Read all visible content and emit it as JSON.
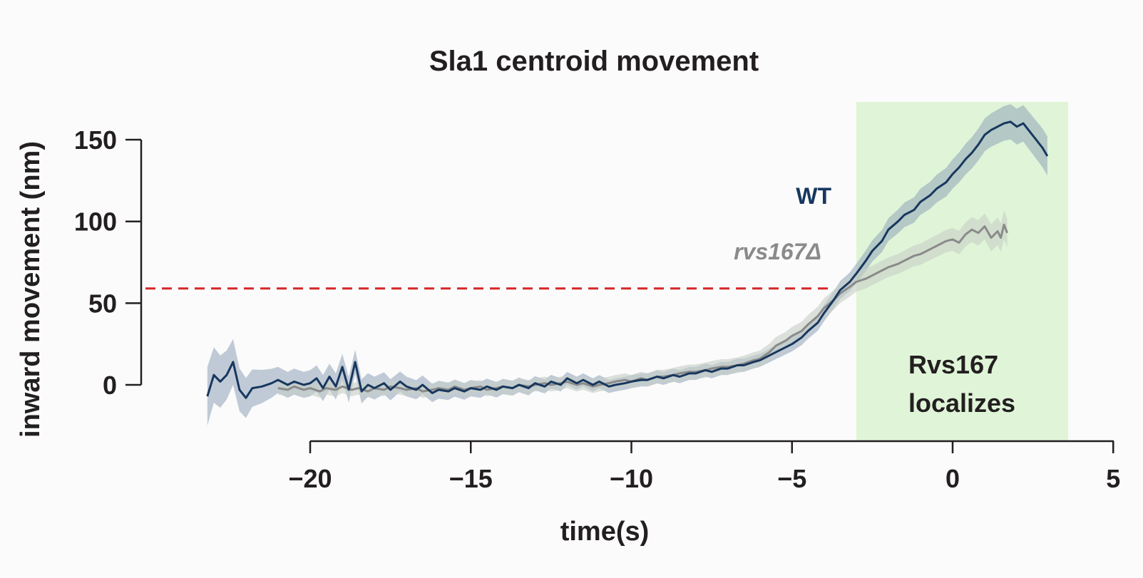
{
  "chart_data": {
    "type": "line",
    "title": "Sla1 centroid movement",
    "xlabel": "time(s)",
    "ylabel": "inward movement (nm)",
    "xlim": [
      -23.5,
      5
    ],
    "ylim": [
      -20,
      172
    ],
    "xticks": [
      -20,
      -15,
      -10,
      -5,
      0,
      5
    ],
    "xtick_labels": [
      "−20",
      "−15",
      "−10",
      "−5",
      "0",
      "5"
    ],
    "yticks": [
      0,
      50,
      100,
      150
    ],
    "ytick_labels": [
      "0",
      "50",
      "100",
      "150"
    ],
    "threshold": {
      "y": 59,
      "x_end": -3.8,
      "color": "#d7262b",
      "style": "dashed"
    },
    "shaded_region": {
      "x_start": -3,
      "x_end": 3.6,
      "label_lines": [
        "Rvs167",
        "localizes"
      ],
      "color": "#e0f5d8"
    },
    "series": [
      {
        "name": "WT",
        "color": "#17375e",
        "band_color": "#8fa3b8",
        "points": [
          [
            -23.2,
            -7
          ],
          [
            -23.0,
            6
          ],
          [
            -22.8,
            2
          ],
          [
            -22.6,
            6
          ],
          [
            -22.4,
            14
          ],
          [
            -22.2,
            -3
          ],
          [
            -22.0,
            -8
          ],
          [
            -21.8,
            -2
          ],
          [
            -21.5,
            -1
          ],
          [
            -21.2,
            1
          ],
          [
            -21.0,
            3
          ],
          [
            -20.7,
            0
          ],
          [
            -20.5,
            2
          ],
          [
            -20.2,
            0
          ],
          [
            -20.0,
            1
          ],
          [
            -19.8,
            4
          ],
          [
            -19.6,
            -2
          ],
          [
            -19.4,
            5
          ],
          [
            -19.2,
            -1
          ],
          [
            -19.0,
            11
          ],
          [
            -18.8,
            -3
          ],
          [
            -18.6,
            14
          ],
          [
            -18.4,
            -4
          ],
          [
            -18.2,
            0
          ],
          [
            -18.0,
            -2
          ],
          [
            -17.7,
            1
          ],
          [
            -17.5,
            -3
          ],
          [
            -17.2,
            2
          ],
          [
            -17.0,
            -1
          ],
          [
            -16.7,
            -3
          ],
          [
            -16.5,
            0
          ],
          [
            -16.2,
            -5
          ],
          [
            -16.0,
            -3
          ],
          [
            -15.7,
            -4
          ],
          [
            -15.5,
            -2
          ],
          [
            -15.2,
            -4
          ],
          [
            -15.0,
            -2
          ],
          [
            -14.7,
            -3
          ],
          [
            -14.5,
            -1
          ],
          [
            -14.2,
            -3
          ],
          [
            -14.0,
            -1
          ],
          [
            -13.7,
            -2
          ],
          [
            -13.5,
            0
          ],
          [
            -13.2,
            -2
          ],
          [
            -13.0,
            1
          ],
          [
            -12.7,
            -1
          ],
          [
            -12.5,
            2
          ],
          [
            -12.2,
            0
          ],
          [
            -12.0,
            4
          ],
          [
            -11.7,
            1
          ],
          [
            -11.5,
            3
          ],
          [
            -11.2,
            0
          ],
          [
            -11.0,
            2
          ],
          [
            -10.7,
            -1
          ],
          [
            -10.5,
            0
          ],
          [
            -10.2,
            1
          ],
          [
            -10.0,
            2
          ],
          [
            -9.7,
            3
          ],
          [
            -9.5,
            3
          ],
          [
            -9.2,
            5
          ],
          [
            -9.0,
            4
          ],
          [
            -8.7,
            6
          ],
          [
            -8.5,
            5
          ],
          [
            -8.2,
            7
          ],
          [
            -8.0,
            7
          ],
          [
            -7.7,
            9
          ],
          [
            -7.5,
            8
          ],
          [
            -7.2,
            10
          ],
          [
            -7.0,
            10
          ],
          [
            -6.7,
            12
          ],
          [
            -6.5,
            12
          ],
          [
            -6.2,
            14
          ],
          [
            -6.0,
            15
          ],
          [
            -5.7,
            18
          ],
          [
            -5.5,
            20
          ],
          [
            -5.2,
            23
          ],
          [
            -5.0,
            25
          ],
          [
            -4.7,
            29
          ],
          [
            -4.5,
            33
          ],
          [
            -4.2,
            38
          ],
          [
            -4.0,
            44
          ],
          [
            -3.7,
            52
          ],
          [
            -3.5,
            58
          ],
          [
            -3.2,
            63
          ],
          [
            -3.0,
            68
          ],
          [
            -2.7,
            76
          ],
          [
            -2.5,
            82
          ],
          [
            -2.2,
            88
          ],
          [
            -2.0,
            95
          ],
          [
            -1.7,
            100
          ],
          [
            -1.5,
            104
          ],
          [
            -1.2,
            107
          ],
          [
            -1.0,
            112
          ],
          [
            -0.7,
            116
          ],
          [
            -0.5,
            120
          ],
          [
            -0.2,
            124
          ],
          [
            0.0,
            129
          ],
          [
            0.2,
            133
          ],
          [
            0.4,
            138
          ],
          [
            0.6,
            142
          ],
          [
            0.8,
            147
          ],
          [
            1.0,
            153
          ],
          [
            1.2,
            156
          ],
          [
            1.4,
            158
          ],
          [
            1.6,
            160
          ],
          [
            1.8,
            161
          ],
          [
            2.0,
            158
          ],
          [
            2.2,
            160
          ],
          [
            2.4,
            155
          ],
          [
            2.6,
            150
          ],
          [
            2.8,
            145
          ],
          [
            2.95,
            140
          ]
        ],
        "band_halfwidth": [
          [
            -23.2,
            18
          ],
          [
            -22.4,
            14
          ],
          [
            -21.0,
            8
          ],
          [
            -19.0,
            8
          ],
          [
            -17.0,
            6
          ],
          [
            -15.0,
            5
          ],
          [
            -12.0,
            4
          ],
          [
            -9.0,
            4
          ],
          [
            -6.0,
            4
          ],
          [
            -4.0,
            5
          ],
          [
            -2.0,
            7
          ],
          [
            0.0,
            9
          ],
          [
            2.0,
            11
          ],
          [
            2.95,
            12
          ]
        ]
      },
      {
        "name": "rvs167Δ",
        "color": "#8a8a8a",
        "band_color": "#c7cfc7",
        "points": [
          [
            -21.0,
            -2
          ],
          [
            -20.7,
            -3
          ],
          [
            -20.5,
            -1
          ],
          [
            -20.2,
            -3
          ],
          [
            -20.0,
            -2
          ],
          [
            -19.7,
            -4
          ],
          [
            -19.5,
            -2
          ],
          [
            -19.2,
            -3
          ],
          [
            -19.0,
            -1
          ],
          [
            -18.7,
            -3
          ],
          [
            -18.5,
            -2
          ],
          [
            -18.2,
            -4
          ],
          [
            -18.0,
            -2
          ],
          [
            -17.7,
            -3
          ],
          [
            -17.5,
            -1
          ],
          [
            -17.2,
            -2
          ],
          [
            -17.0,
            -3
          ],
          [
            -16.7,
            -2
          ],
          [
            -16.5,
            -4
          ],
          [
            -16.2,
            -3
          ],
          [
            -16.0,
            -2
          ],
          [
            -15.7,
            -3
          ],
          [
            -15.5,
            -1
          ],
          [
            -15.2,
            -3
          ],
          [
            -15.0,
            -2
          ],
          [
            -14.7,
            -1
          ],
          [
            -14.5,
            -3
          ],
          [
            -14.2,
            -2
          ],
          [
            -14.0,
            -1
          ],
          [
            -13.7,
            -2
          ],
          [
            -13.5,
            0
          ],
          [
            -13.2,
            -1
          ],
          [
            -13.0,
            0
          ],
          [
            -12.7,
            1
          ],
          [
            -12.5,
            0
          ],
          [
            -12.2,
            1
          ],
          [
            -12.0,
            2
          ],
          [
            -11.7,
            0
          ],
          [
            -11.5,
            1
          ],
          [
            -11.2,
            -1
          ],
          [
            -11.0,
            0
          ],
          [
            -10.7,
            1
          ],
          [
            -10.5,
            2
          ],
          [
            -10.2,
            3
          ],
          [
            -10.0,
            2
          ],
          [
            -9.7,
            4
          ],
          [
            -9.5,
            3
          ],
          [
            -9.2,
            5
          ],
          [
            -9.0,
            5
          ],
          [
            -8.7,
            6
          ],
          [
            -8.5,
            7
          ],
          [
            -8.2,
            8
          ],
          [
            -8.0,
            8
          ],
          [
            -7.7,
            9
          ],
          [
            -7.5,
            10
          ],
          [
            -7.2,
            11
          ],
          [
            -7.0,
            11
          ],
          [
            -6.7,
            12
          ],
          [
            -6.5,
            13
          ],
          [
            -6.2,
            15
          ],
          [
            -6.0,
            16
          ],
          [
            -5.7,
            20
          ],
          [
            -5.5,
            24
          ],
          [
            -5.2,
            27
          ],
          [
            -5.0,
            30
          ],
          [
            -4.7,
            33
          ],
          [
            -4.5,
            37
          ],
          [
            -4.2,
            42
          ],
          [
            -4.0,
            47
          ],
          [
            -3.7,
            52
          ],
          [
            -3.5,
            56
          ],
          [
            -3.2,
            60
          ],
          [
            -3.0,
            63
          ],
          [
            -2.7,
            65
          ],
          [
            -2.5,
            67
          ],
          [
            -2.2,
            70
          ],
          [
            -2.0,
            72
          ],
          [
            -1.7,
            74
          ],
          [
            -1.5,
            76
          ],
          [
            -1.2,
            79
          ],
          [
            -1.0,
            80
          ],
          [
            -0.7,
            83
          ],
          [
            -0.5,
            85
          ],
          [
            -0.2,
            88
          ],
          [
            0.0,
            89
          ],
          [
            0.2,
            87
          ],
          [
            0.4,
            92
          ],
          [
            0.6,
            95
          ],
          [
            0.8,
            93
          ],
          [
            1.0,
            97
          ],
          [
            1.2,
            90
          ],
          [
            1.4,
            94
          ],
          [
            1.5,
            90
          ],
          [
            1.6,
            98
          ],
          [
            1.7,
            93
          ]
        ],
        "band_halfwidth": [
          [
            -21.0,
            4
          ],
          [
            -15.0,
            4
          ],
          [
            -10.0,
            4
          ],
          [
            -6.0,
            5
          ],
          [
            -4.0,
            6
          ],
          [
            -2.0,
            6
          ],
          [
            0.0,
            7
          ],
          [
            1.0,
            8
          ],
          [
            1.7,
            9
          ]
        ]
      }
    ]
  }
}
